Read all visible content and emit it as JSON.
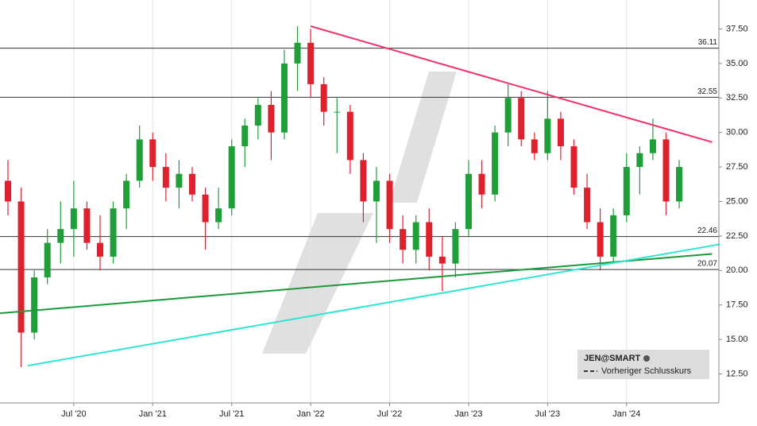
{
  "chart_data": {
    "type": "candlestick",
    "name": "JEN@SMART",
    "reference_label": "Vorheriger Schlusskurs",
    "up_color": "#1f9e3a",
    "down_color": "#e0202c",
    "categories": [
      null,
      null,
      null,
      null,
      null,
      "Jul '20",
      null,
      null,
      null,
      null,
      null,
      "Jan '21",
      null,
      null,
      null,
      null,
      null,
      "Jul '21",
      null,
      null,
      null,
      null,
      null,
      "Jan '22",
      null,
      null,
      null,
      null,
      null,
      "Jul '22",
      null,
      null,
      null,
      null,
      null,
      "Jan '23",
      null,
      null,
      null,
      null,
      null,
      "Jul '23",
      null,
      null,
      null,
      null,
      null,
      "Jan '24",
      null,
      null,
      null,
      null
    ],
    "open": [
      26.5,
      25,
      15.5,
      19.5,
      22,
      23,
      24.5,
      22,
      21,
      24.5,
      26.5,
      29.5,
      27.5,
      26,
      27,
      25.5,
      23.5,
      24.5,
      29,
      30.5,
      32,
      30,
      35,
      36.5,
      33.5,
      31.5,
      31.5,
      28,
      25,
      26.5,
      23,
      21.5,
      23.5,
      21,
      20.5,
      23,
      27,
      25.5,
      30,
      32.5,
      29.5,
      28.5,
      31,
      29,
      26,
      23.5,
      21,
      24,
      27.5,
      28.5,
      29.5,
      25
    ],
    "high": [
      28,
      26,
      20,
      23,
      25,
      26.5,
      25,
      24,
      25,
      27,
      30.5,
      30,
      28.5,
      28,
      27.5,
      26,
      26,
      29.5,
      31,
      32.5,
      33,
      36,
      37.7,
      37.5,
      34,
      32.5,
      32,
      28.5,
      27.5,
      27,
      24,
      24,
      24.5,
      22.5,
      23.5,
      28,
      28,
      30.5,
      33.5,
      33,
      30,
      33,
      31.5,
      29.5,
      27,
      24.5,
      24.5,
      28.5,
      29,
      31,
      30,
      28
    ],
    "low": [
      24,
      13,
      15,
      19,
      20.5,
      21,
      21.5,
      20,
      20.5,
      23,
      26,
      26.5,
      25,
      24.5,
      25,
      21.5,
      23,
      24,
      27.5,
      29.5,
      28,
      29.5,
      33,
      32.5,
      30.5,
      28.5,
      27,
      23.5,
      22,
      22,
      20.5,
      20.5,
      20,
      18.5,
      19.5,
      22.5,
      24.5,
      25,
      29,
      29,
      28,
      28,
      28,
      25.5,
      23,
      20,
      20.5,
      23.5,
      25.5,
      28,
      24,
      24.5
    ],
    "close": [
      25,
      15.5,
      19.5,
      22,
      23,
      24.5,
      22,
      21,
      24.5,
      26.5,
      29.5,
      27.5,
      26,
      27,
      25.5,
      23.5,
      24.5,
      29,
      30.5,
      32,
      30,
      35,
      36.5,
      33.5,
      31.5,
      31.5,
      28,
      25,
      26.5,
      23,
      21.5,
      23.5,
      21,
      20.5,
      23,
      27,
      25.5,
      30,
      32.5,
      29.5,
      28.5,
      31,
      29,
      26,
      23.5,
      21,
      24,
      27.5,
      28.5,
      29.5,
      25,
      27.5
    ],
    "levels": [
      36.11,
      32.55,
      22.46,
      20.07
    ],
    "trendlines": [
      {
        "color": "#f0336a",
        "from": [
          23,
          37.7
        ],
        "to": [
          53.5,
          29.3
        ]
      },
      {
        "color": "#1a9a3a",
        "from": [
          -0.6,
          16.9
        ],
        "to": [
          53.5,
          21.2
        ]
      },
      {
        "color": "#2ee6d0",
        "from": [
          1.5,
          13.1
        ],
        "to": [
          54.1,
          21.9
        ]
      }
    ],
    "ylim": [
      10.4,
      39.6
    ],
    "yticks": [
      {
        "value": 12.5,
        "label": "12.50"
      },
      {
        "value": 15,
        "label": "15.00"
      },
      {
        "value": 17.5,
        "label": "17.50"
      },
      {
        "value": 20,
        "label": "20.00"
      },
      {
        "value": 22.5,
        "label": "22.50"
      },
      {
        "value": 25,
        "label": "25.00"
      },
      {
        "value": 27.5,
        "label": "27.50"
      },
      {
        "value": 30,
        "label": "30.00"
      },
      {
        "value": 32.5,
        "label": "32.50"
      },
      {
        "value": 35,
        "label": "35.00"
      },
      {
        "value": 37.5,
        "label": "37.50"
      }
    ],
    "grid": true
  }
}
